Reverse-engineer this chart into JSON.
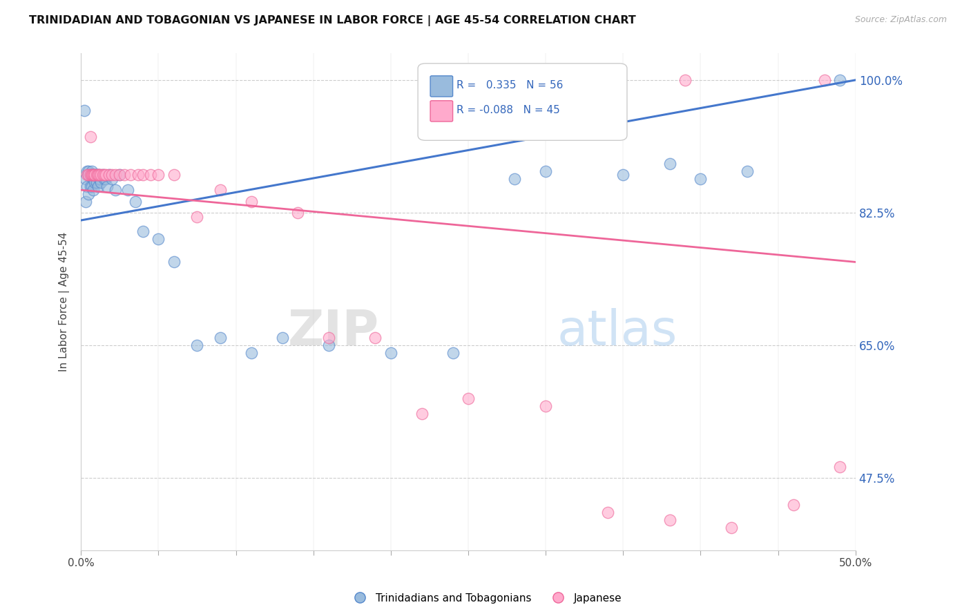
{
  "title": "TRINIDADIAN AND TOBAGONIAN VS JAPANESE IN LABOR FORCE | AGE 45-54 CORRELATION CHART",
  "source": "Source: ZipAtlas.com",
  "ylabel_text": "In Labor Force | Age 45-54",
  "xlim": [
    0.0,
    0.5
  ],
  "ylim": [
    0.38,
    1.035
  ],
  "yticks": [
    0.475,
    0.65,
    0.825,
    1.0
  ],
  "ytick_labels": [
    "47.5%",
    "65.0%",
    "82.5%",
    "100.0%"
  ],
  "xtick_positions": [
    0.0,
    0.05,
    0.1,
    0.15,
    0.2,
    0.25,
    0.3,
    0.35,
    0.4,
    0.45,
    0.5
  ],
  "xtick_labels": [
    "0.0%",
    "",
    "",
    "",
    "",
    "",
    "",
    "",
    "",
    "",
    "50.0%"
  ],
  "legend_blue_R": "0.335",
  "legend_blue_N": "56",
  "legend_pink_R": "-0.088",
  "legend_pink_N": "45",
  "blue_scatter_color": "#99BBDD",
  "blue_edge_color": "#5588CC",
  "pink_scatter_color": "#FFAACC",
  "pink_edge_color": "#EE6699",
  "trend_blue_color": "#4477CC",
  "trend_pink_color": "#EE6699",
  "watermark_text": "ZIPatlas",
  "blue_scatter_x": [
    0.002,
    0.003,
    0.003,
    0.004,
    0.004,
    0.005,
    0.005,
    0.005,
    0.005,
    0.006,
    0.006,
    0.006,
    0.007,
    0.007,
    0.007,
    0.007,
    0.008,
    0.008,
    0.008,
    0.009,
    0.009,
    0.009,
    0.01,
    0.01,
    0.011,
    0.011,
    0.012,
    0.012,
    0.013,
    0.014,
    0.015,
    0.016,
    0.017,
    0.018,
    0.02,
    0.022,
    0.025,
    0.03,
    0.035,
    0.04,
    0.05,
    0.06,
    0.075,
    0.09,
    0.11,
    0.13,
    0.16,
    0.2,
    0.24,
    0.28,
    0.3,
    0.35,
    0.38,
    0.4,
    0.43,
    0.49
  ],
  "blue_scatter_y": [
    0.96,
    0.84,
    0.87,
    0.88,
    0.86,
    0.85,
    0.875,
    0.875,
    0.88,
    0.86,
    0.875,
    0.875,
    0.86,
    0.875,
    0.875,
    0.88,
    0.855,
    0.87,
    0.875,
    0.865,
    0.875,
    0.875,
    0.865,
    0.875,
    0.86,
    0.875,
    0.87,
    0.875,
    0.865,
    0.875,
    0.87,
    0.87,
    0.86,
    0.875,
    0.87,
    0.855,
    0.875,
    0.855,
    0.84,
    0.8,
    0.79,
    0.76,
    0.65,
    0.66,
    0.64,
    0.66,
    0.65,
    0.64,
    0.64,
    0.87,
    0.88,
    0.875,
    0.89,
    0.87,
    0.88,
    1.0
  ],
  "pink_scatter_x": [
    0.004,
    0.005,
    0.006,
    0.006,
    0.007,
    0.007,
    0.008,
    0.008,
    0.009,
    0.009,
    0.01,
    0.011,
    0.011,
    0.012,
    0.013,
    0.014,
    0.015,
    0.016,
    0.018,
    0.02,
    0.022,
    0.025,
    0.028,
    0.032,
    0.037,
    0.04,
    0.045,
    0.05,
    0.06,
    0.075,
    0.09,
    0.11,
    0.14,
    0.16,
    0.19,
    0.22,
    0.25,
    0.3,
    0.34,
    0.38,
    0.42,
    0.46,
    0.49,
    0.39,
    0.48
  ],
  "pink_scatter_y": [
    0.875,
    0.875,
    0.875,
    0.925,
    0.875,
    0.875,
    0.875,
    0.875,
    0.875,
    0.875,
    0.875,
    0.875,
    0.875,
    0.875,
    0.875,
    0.875,
    0.875,
    0.875,
    0.875,
    0.875,
    0.875,
    0.875,
    0.875,
    0.875,
    0.875,
    0.875,
    0.875,
    0.875,
    0.875,
    0.82,
    0.855,
    0.84,
    0.825,
    0.66,
    0.66,
    0.56,
    0.58,
    0.57,
    0.43,
    0.42,
    0.41,
    0.44,
    0.49,
    1.0,
    1.0
  ],
  "blue_trend_x0": 0.0,
  "blue_trend_y0": 0.815,
  "blue_trend_x1": 0.5,
  "blue_trend_y1": 1.0,
  "pink_trend_x0": 0.0,
  "pink_trend_y0": 0.855,
  "pink_trend_x1": 0.5,
  "pink_trend_y1": 0.76
}
